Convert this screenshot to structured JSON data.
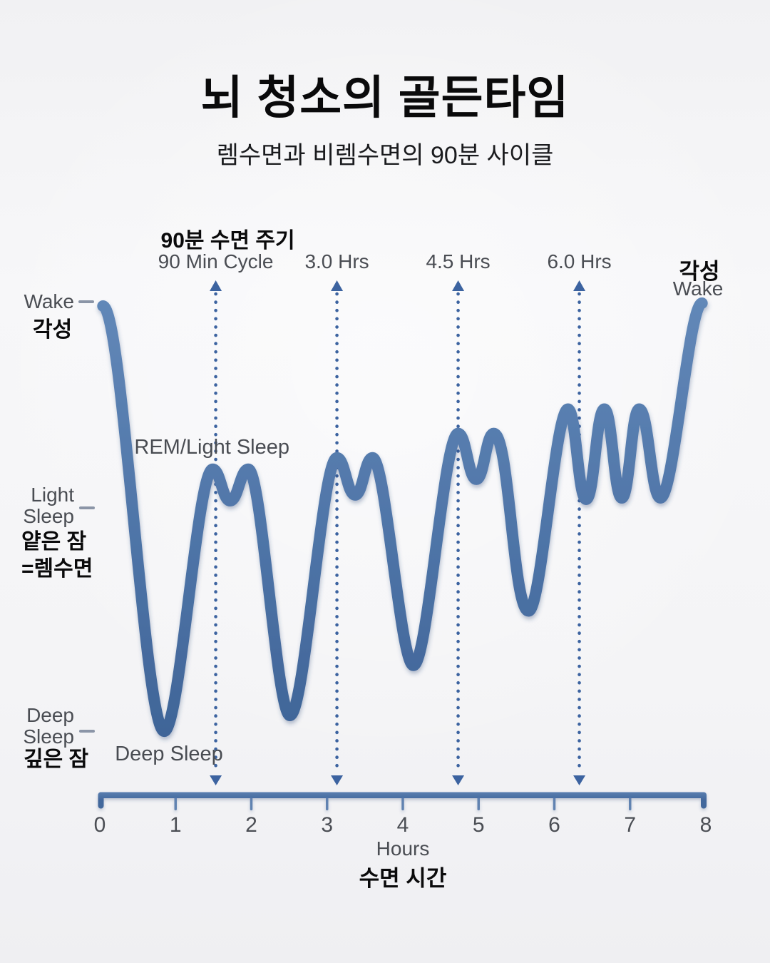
{
  "header": {
    "title": "뇌 청소의 골든타임",
    "subtitle": "렘수면과 비렘수면의 90분 사이클"
  },
  "chart_data": {
    "type": "line",
    "description": "Stylized hypnogram: sleep depth over 8 hours, 90-minute REM/non-REM cycles",
    "x_axis": {
      "label_en": "Hours",
      "label_ko": "수면 시간",
      "ticks": [
        0,
        1,
        2,
        3,
        4,
        5,
        6,
        7,
        8
      ],
      "range": [
        0,
        8
      ]
    },
    "y_axis": {
      "levels": [
        {
          "en": "Wake",
          "ko": "각성",
          "depth": 0
        },
        {
          "en": "Light\nSleep",
          "ko": "얕은 잠\n=렘수면",
          "depth": 1.44
        },
        {
          "en": "Deep\nSleep",
          "ko": "깊은 잠",
          "depth": 3
        }
      ]
    },
    "series": {
      "name": "sleep-depth",
      "points": [
        {
          "h": 0.04,
          "d": 0.02
        },
        {
          "h": 0.85,
          "d": 2.99
        },
        {
          "h": 1.49,
          "d": 1.16
        },
        {
          "h": 1.72,
          "d": 1.38
        },
        {
          "h": 1.96,
          "d": 1.16
        },
        {
          "h": 2.51,
          "d": 2.88
        },
        {
          "h": 3.13,
          "d": 1.08
        },
        {
          "h": 3.37,
          "d": 1.34
        },
        {
          "h": 3.6,
          "d": 1.08
        },
        {
          "h": 4.14,
          "d": 2.53
        },
        {
          "h": 4.73,
          "d": 0.91
        },
        {
          "h": 4.97,
          "d": 1.23
        },
        {
          "h": 5.2,
          "d": 0.91
        },
        {
          "h": 5.66,
          "d": 2.15
        },
        {
          "h": 6.18,
          "d": 0.74
        },
        {
          "h": 6.42,
          "d": 1.37
        },
        {
          "h": 6.66,
          "d": 0.74
        },
        {
          "h": 6.89,
          "d": 1.36
        },
        {
          "h": 7.12,
          "d": 0.74
        },
        {
          "h": 7.4,
          "d": 1.36
        },
        {
          "h": 7.95,
          "d": 0.0
        }
      ]
    },
    "annotations": {
      "cycle_lines": [
        {
          "h": 1.53,
          "label_ko": "90분 수면 주기",
          "label_en": "90 Min Cycle"
        },
        {
          "h": 3.13,
          "label_en": "3.0 Hrs"
        },
        {
          "h": 4.73,
          "label_en": "4.5 Hrs"
        },
        {
          "h": 6.33,
          "label_en": "6.0 Hrs"
        }
      ],
      "wake_end": {
        "ko": "각성",
        "en": "Wake"
      },
      "rem_label": "REM/Light Sleep",
      "deep_label": "Deep Sleep"
    },
    "colors": {
      "curve": "#4e74a7",
      "curve_light": "#6288b8",
      "curve_dark": "#3f6497",
      "dotted_line": "#3c63a0",
      "axis": "#4d73a8",
      "gray_text": "#4a4d53",
      "black_text": "#0a0a0b",
      "background": "#f4f4f6"
    }
  }
}
